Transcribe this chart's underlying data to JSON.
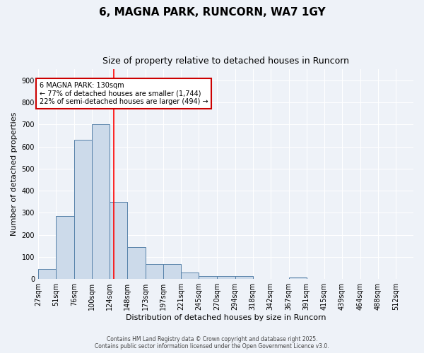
{
  "title": "6, MAGNA PARK, RUNCORN, WA7 1GY",
  "subtitle": "Size of property relative to detached houses in Runcorn",
  "xlabel": "Distribution of detached houses by size in Runcorn",
  "ylabel": "Number of detached properties",
  "bar_values": [
    45,
    285,
    630,
    700,
    350,
    145,
    68,
    68,
    30,
    15,
    12,
    12,
    0,
    0,
    8,
    0,
    0,
    0,
    0,
    0,
    0
  ],
  "bin_edges": [
    27,
    51,
    76,
    100,
    124,
    148,
    173,
    197,
    221,
    245,
    270,
    294,
    318,
    342,
    367,
    391,
    415,
    439,
    464,
    488,
    512,
    536
  ],
  "x_tick_labels": [
    "27sqm",
    "51sqm",
    "76sqm",
    "100sqm",
    "124sqm",
    "148sqm",
    "173sqm",
    "197sqm",
    "221sqm",
    "245sqm",
    "270sqm",
    "294sqm",
    "318sqm",
    "342sqm",
    "367sqm",
    "391sqm",
    "415sqm",
    "439sqm",
    "464sqm",
    "488sqm",
    "512sqm"
  ],
  "bar_color": "#ccdaea",
  "bar_edge_color": "#5580a8",
  "red_line_x": 130,
  "ylim": [
    0,
    950
  ],
  "yticks": [
    0,
    100,
    200,
    300,
    400,
    500,
    600,
    700,
    800,
    900
  ],
  "annotation_title": "6 MAGNA PARK: 130sqm",
  "annotation_line2": "← 77% of detached houses are smaller (1,744)",
  "annotation_line3": "22% of semi-detached houses are larger (494) →",
  "annotation_box_color": "#cc0000",
  "footer_line1": "Contains HM Land Registry data © Crown copyright and database right 2025.",
  "footer_line2": "Contains public sector information licensed under the Open Government Licence v3.0.",
  "background_color": "#eef2f8",
  "grid_color": "#ffffff",
  "title_fontsize": 11,
  "subtitle_fontsize": 9,
  "axis_label_fontsize": 8,
  "tick_fontsize": 7,
  "annotation_fontsize": 7,
  "footer_fontsize": 5.5
}
